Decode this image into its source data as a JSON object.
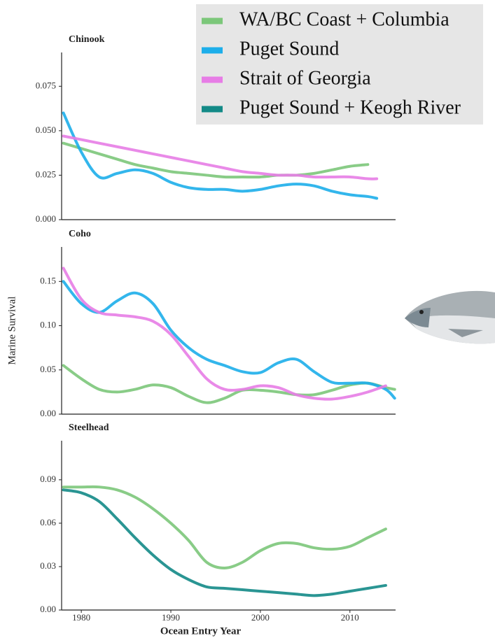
{
  "chart_data": [
    {
      "type": "line",
      "title": "Chinook",
      "x": [
        1978,
        1980,
        1982,
        1984,
        1986,
        1988,
        1990,
        1992,
        1994,
        1996,
        1998,
        2000,
        2002,
        2004,
        2006,
        2008,
        2010,
        2012,
        2013
      ],
      "xlim": [
        1977.8,
        2015.1
      ],
      "ylim": [
        0,
        0.094
      ],
      "yticks": [
        {
          "value": 0,
          "label": "0.000"
        },
        {
          "value": 0.025,
          "label": "0.025"
        },
        {
          "value": 0.05,
          "label": "0.050"
        },
        {
          "value": 0.075,
          "label": "0.075"
        }
      ],
      "series": [
        {
          "name": "WA/BC Coast + Columbia",
          "color": "#7cc77a",
          "values": [
            0.043,
            0.04,
            0.037,
            0.034,
            0.031,
            0.029,
            0.027,
            0.026,
            0.025,
            0.024,
            0.024,
            0.024,
            0.025,
            0.025,
            0.026,
            0.028,
            0.03,
            0.031,
            null
          ]
        },
        {
          "name": "Puget Sound",
          "color": "#1daeea",
          "values": [
            0.06,
            0.038,
            0.024,
            0.026,
            0.028,
            0.026,
            0.021,
            0.018,
            0.017,
            0.017,
            0.016,
            0.017,
            0.019,
            0.02,
            0.019,
            0.016,
            0.014,
            0.013,
            0.012
          ]
        },
        {
          "name": "Strait of Georgia",
          "color": "#e77de6",
          "values": [
            0.047,
            0.045,
            0.043,
            0.041,
            0.039,
            0.037,
            0.035,
            0.033,
            0.031,
            0.029,
            0.027,
            0.026,
            0.025,
            0.025,
            0.024,
            0.024,
            0.024,
            0.023,
            0.023
          ]
        }
      ]
    },
    {
      "type": "line",
      "title": "Coho",
      "y_label": "Marine Survival",
      "x": [
        1978,
        1980,
        1982,
        1984,
        1986,
        1988,
        1990,
        1992,
        1994,
        1996,
        1998,
        2000,
        2002,
        2004,
        2006,
        2008,
        2010,
        2012,
        2014,
        2015
      ],
      "xlim": [
        1977.8,
        2015.1
      ],
      "ylim": [
        0,
        0.189
      ],
      "yticks": [
        {
          "value": 0,
          "label": "0.00"
        },
        0.05,
        {
          "value": 0.1,
          "label": "0.10"
        },
        0.15
      ],
      "series": [
        {
          "name": "WA/BC Coast + Columbia",
          "color": "#7cc77a",
          "values": [
            0.055,
            0.04,
            0.028,
            0.025,
            0.028,
            0.033,
            0.03,
            0.02,
            0.013,
            0.018,
            0.027,
            0.027,
            0.025,
            0.022,
            0.022,
            0.027,
            0.033,
            0.035,
            0.03,
            0.028
          ]
        },
        {
          "name": "Puget Sound",
          "color": "#1daeea",
          "values": [
            0.15,
            0.125,
            0.115,
            0.128,
            0.137,
            0.125,
            0.095,
            0.075,
            0.062,
            0.055,
            0.048,
            0.047,
            0.058,
            0.062,
            0.048,
            0.036,
            0.035,
            0.035,
            0.028,
            0.018
          ]
        },
        {
          "name": "Strait of Georgia",
          "color": "#e77de6",
          "values": [
            0.165,
            0.13,
            0.115,
            0.112,
            0.11,
            0.105,
            0.09,
            0.065,
            0.04,
            0.028,
            0.028,
            0.032,
            0.03,
            0.022,
            0.018,
            0.017,
            0.02,
            0.025,
            0.032,
            null
          ]
        }
      ]
    },
    {
      "type": "line",
      "title": "Steelhead",
      "x_label": "Ocean Entry Year",
      "x": [
        1978,
        1980,
        1982,
        1984,
        1986,
        1988,
        1990,
        1992,
        1994,
        1996,
        1998,
        2000,
        2002,
        2004,
        2006,
        2008,
        2010,
        2012,
        2014
      ],
      "xlim": [
        1977.8,
        2015.1
      ],
      "xticks": [
        1980,
        1990,
        2000,
        2010
      ],
      "ylim": [
        0,
        0.117
      ],
      "yticks": [
        {
          "value": 0,
          "label": "0.00"
        },
        0.03,
        0.06,
        0.09
      ],
      "series": [
        {
          "name": "WA/BC Coast + Columbia",
          "color": "#7cc77a",
          "values": [
            0.085,
            0.085,
            0.085,
            0.083,
            0.078,
            0.07,
            0.06,
            0.048,
            0.033,
            0.029,
            0.033,
            0.041,
            0.046,
            0.046,
            0.043,
            0.042,
            0.044,
            0.05,
            0.056
          ]
        },
        {
          "name": "Puget Sound + Keogh River",
          "color": "#138a87",
          "values": [
            0.083,
            0.081,
            0.075,
            0.063,
            0.05,
            0.038,
            0.028,
            0.021,
            0.016,
            0.015,
            0.014,
            0.013,
            0.012,
            0.011,
            0.01,
            0.011,
            0.013,
            0.015,
            0.017
          ]
        }
      ]
    }
  ]
}
